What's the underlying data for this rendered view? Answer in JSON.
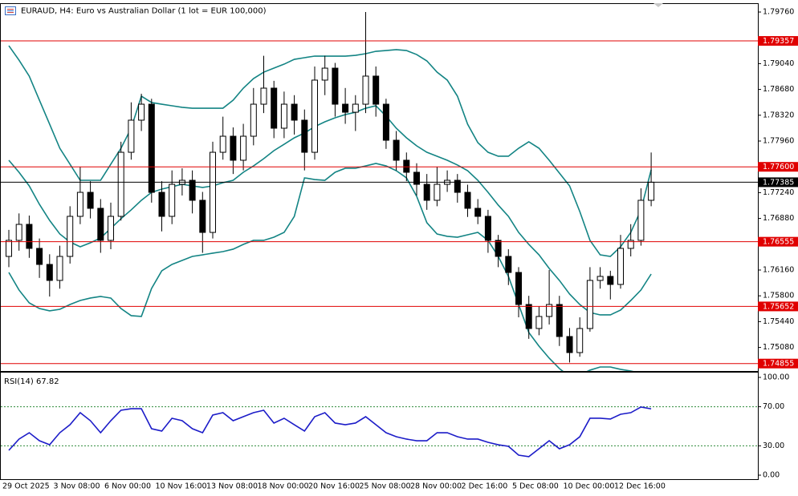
{
  "chart_data": [
    {
      "type": "candlestick",
      "title": "EURAUD, H4:  Euro vs Australian Dollar (1 lot = EUR 100,000)",
      "categories": [
        "29 Oct 2025",
        null,
        null,
        null,
        null,
        "3 Nov 08:00",
        null,
        null,
        null,
        null,
        "6 Nov 00:00",
        null,
        null,
        null,
        null,
        "10 Nov 16:00",
        null,
        null,
        null,
        null,
        "13 Nov 08:00",
        null,
        null,
        null,
        null,
        "18 Nov 00:00",
        null,
        null,
        null,
        null,
        "20 Nov 16:00",
        null,
        null,
        null,
        null,
        "25 Nov 08:00",
        null,
        null,
        null,
        null,
        "28 Nov 00:00",
        null,
        null,
        null,
        null,
        "2 Dec 16:00",
        null,
        null,
        null,
        null,
        "5 Dec 08:00",
        null,
        null,
        null,
        null,
        "10 Dec 00:00",
        null,
        null,
        null,
        null,
        "12 Dec 16:00",
        null,
        null,
        null
      ],
      "open": [
        1.7635,
        1.76574,
        1.76797,
        1.76462,
        1.76238,
        1.76015,
        1.7635,
        1.76909,
        1.77244,
        1.77021,
        1.76574,
        1.76909,
        1.77803,
        1.78251,
        1.78474,
        1.77244,
        1.76909,
        1.77356,
        1.77412,
        1.77133,
        1.76685,
        1.77803,
        1.78027,
        1.77692,
        1.78027,
        1.78474,
        1.78698,
        1.78139,
        1.78474,
        1.78251,
        1.77803,
        1.7881,
        1.78977,
        1.78474,
        1.78362,
        1.78474,
        1.78866,
        1.78474,
        1.77971,
        1.77692,
        1.77524,
        1.77356,
        1.77133,
        1.77356,
        1.77412,
        1.77244,
        1.77021,
        1.76909,
        1.76574,
        1.7635,
        1.76126,
        1.75679,
        1.75344,
        1.75512,
        1.75679,
        1.75232,
        1.75008,
        1.75344,
        1.76015,
        1.76071,
        1.75959,
        1.76462,
        1.76574,
        1.77133
      ],
      "high": [
        1.7672,
        1.7695,
        1.7692,
        1.766,
        1.7638,
        1.765,
        1.7705,
        1.776,
        1.774,
        1.7715,
        1.771,
        1.7795,
        1.785,
        1.7862,
        1.7855,
        1.774,
        1.7755,
        1.7758,
        1.7755,
        1.7725,
        1.7795,
        1.783,
        1.7815,
        1.782,
        1.787,
        1.7915,
        1.788,
        1.7865,
        1.786,
        1.784,
        1.79,
        1.7915,
        1.7905,
        1.787,
        1.786,
        1.7976,
        1.79,
        1.7855,
        1.781,
        1.778,
        1.7765,
        1.775,
        1.776,
        1.7755,
        1.775,
        1.7735,
        1.7715,
        1.77,
        1.7665,
        1.7645,
        1.762,
        1.758,
        1.7565,
        1.7616,
        1.758,
        1.7535,
        1.755,
        1.762,
        1.762,
        1.7615,
        1.7665,
        1.768,
        1.773,
        1.778
      ],
      "low": [
        1.762,
        1.7643,
        1.7633,
        1.7605,
        1.7579,
        1.759,
        1.7625,
        1.768,
        1.7688,
        1.764,
        1.7645,
        1.7685,
        1.777,
        1.781,
        1.771,
        1.767,
        1.768,
        1.772,
        1.7695,
        1.764,
        1.766,
        1.777,
        1.775,
        1.7755,
        1.779,
        1.7835,
        1.78,
        1.78,
        1.7805,
        1.7755,
        1.777,
        1.786,
        1.783,
        1.782,
        1.781,
        1.7835,
        1.783,
        1.7785,
        1.7755,
        1.774,
        1.772,
        1.77,
        1.7705,
        1.7725,
        1.771,
        1.769,
        1.768,
        1.764,
        1.762,
        1.7595,
        1.755,
        1.752,
        1.7525,
        1.754,
        1.751,
        1.7487,
        1.7495,
        1.753,
        1.759,
        1.7575,
        1.759,
        1.7635,
        1.765,
        1.7705
      ],
      "close": [
        1.76574,
        1.76797,
        1.76462,
        1.76238,
        1.76015,
        1.7635,
        1.76909,
        1.77244,
        1.77021,
        1.76574,
        1.76909,
        1.77803,
        1.78251,
        1.78474,
        1.77244,
        1.76909,
        1.77356,
        1.77412,
        1.77133,
        1.76685,
        1.77803,
        1.78027,
        1.77692,
        1.78027,
        1.78474,
        1.78698,
        1.78139,
        1.78474,
        1.78251,
        1.77803,
        1.7881,
        1.78977,
        1.78474,
        1.78362,
        1.78474,
        1.78866,
        1.78474,
        1.77971,
        1.77692,
        1.77524,
        1.77356,
        1.77133,
        1.77356,
        1.77412,
        1.77244,
        1.77021,
        1.76909,
        1.76574,
        1.7635,
        1.76126,
        1.75679,
        1.75344,
        1.75512,
        1.75679,
        1.75232,
        1.75008,
        1.75344,
        1.76015,
        1.76071,
        1.75959,
        1.76462,
        1.76574,
        1.77133,
        1.77385
      ],
      "color_up": "#ffffff",
      "color_down": "#000000",
      "outline": "#000000",
      "overlays": [
        {
          "color": "#138484",
          "values": [
            1.7929,
            1.79089,
            1.78866,
            1.7853,
            1.78195,
            1.77859,
            1.77636,
            1.77412,
            1.77412,
            1.77412,
            1.77636,
            1.77859,
            1.78139,
            1.78586,
            1.78497,
            1.78474,
            1.78452,
            1.7843,
            1.78418,
            1.78418,
            1.78418,
            1.78418,
            1.7853,
            1.78698,
            1.78832,
            1.78921,
            1.78977,
            1.79033,
            1.791,
            1.79123,
            1.79145,
            1.79145,
            1.79145,
            1.79145,
            1.79156,
            1.79179,
            1.79212,
            1.79223,
            1.79235,
            1.79223,
            1.79167,
            1.79078,
            1.78921,
            1.7881,
            1.78586,
            1.78195,
            1.77938,
            1.77803,
            1.77748,
            1.77748,
            1.77859,
            1.77949,
            1.77859,
            1.77692,
            1.77513,
            1.77334,
            1.76976,
            1.76574,
            1.76372,
            1.7635,
            1.76484,
            1.76685,
            1.76999,
            1.77558
          ]
        },
        {
          "color": "#138484",
          "values": [
            1.77692,
            1.77524,
            1.77334,
            1.77077,
            1.76853,
            1.76663,
            1.76551,
            1.76484,
            1.7654,
            1.76607,
            1.76741,
            1.76876,
            1.76999,
            1.77133,
            1.77244,
            1.77289,
            1.77323,
            1.77356,
            1.77334,
            1.77312,
            1.77334,
            1.77379,
            1.77412,
            1.77524,
            1.77613,
            1.77714,
            1.77826,
            1.77915,
            1.78005,
            1.78072,
            1.78161,
            1.78228,
            1.78284,
            1.78329,
            1.78362,
            1.78418,
            1.78452,
            1.78307,
            1.78139,
            1.78005,
            1.77893,
            1.77803,
            1.77748,
            1.77692,
            1.77625,
            1.77546,
            1.77412,
            1.77244,
            1.77066,
            1.76909,
            1.76685,
            1.76518,
            1.76372,
            1.76182,
            1.76015,
            1.75825,
            1.75679,
            1.75567,
            1.75534,
            1.75534,
            1.75601,
            1.75735,
            1.75881,
            1.76104
          ]
        },
        {
          "color": "#138484",
          "values": [
            1.76126,
            1.75881,
            1.75702,
            1.75623,
            1.7559,
            1.75612,
            1.75679,
            1.75735,
            1.75769,
            1.75791,
            1.75769,
            1.75623,
            1.75523,
            1.75512,
            1.75903,
            1.76149,
            1.76238,
            1.76294,
            1.7635,
            1.76372,
            1.76395,
            1.76417,
            1.76451,
            1.76518,
            1.76574,
            1.76574,
            1.76618,
            1.76685,
            1.76909,
            1.77446,
            1.77423,
            1.77412,
            1.77524,
            1.7758,
            1.7758,
            1.77613,
            1.77647,
            1.77613,
            1.77546,
            1.77446,
            1.77189,
            1.7682,
            1.76663,
            1.7663,
            1.76618,
            1.76652,
            1.76685,
            1.76574,
            1.7635,
            1.76071,
            1.75679,
            1.75288,
            1.75098,
            1.7493,
            1.74785,
            1.74673,
            1.74695,
            1.74763,
            1.74807,
            1.74807,
            1.74774,
            1.74751,
            1.74718,
            1.74695
          ]
        }
      ],
      "ylim": [
        1.74751,
        1.79872
      ],
      "yticks": [
        {
          "value": 1.7976,
          "label": "1.79760"
        },
        {
          "value": 1.7904,
          "label": "1.79040"
        },
        {
          "value": 1.7868,
          "label": "1.78680"
        },
        {
          "value": 1.7832,
          "label": "1.78320"
        },
        {
          "value": 1.7796,
          "label": "1.77960"
        },
        {
          "value": 1.7724,
          "label": "1.77240"
        },
        {
          "value": 1.7688,
          "label": "1.76880"
        },
        {
          "value": 1.7616,
          "label": "1.76160"
        },
        {
          "value": 1.758,
          "label": "1.75800"
        },
        {
          "value": 1.7544,
          "label": "1.75440"
        },
        {
          "value": 1.7508,
          "label": "1.75080"
        }
      ],
      "hlines": [
        {
          "value": 1.79357,
          "color": "#e00000"
        },
        {
          "value": {
            "value": 1.776,
            "label": "1.77600"
          },
          "color": "#e00000"
        },
        {
          "value": 1.76555,
          "color": "#e00000"
        },
        {
          "value": 1.75652,
          "color": "#e00000"
        },
        {
          "value": 1.74855,
          "color": "#e00000"
        },
        {
          "value": 1.77385,
          "color": "#000000"
        }
      ]
    },
    {
      "type": "line",
      "title": "RSI(14) 67.82",
      "color": "#1c1cc8",
      "level_color": "#2e8b3a",
      "values": [
        25.4,
        36.9,
        43.4,
        35.2,
        31.1,
        43.4,
        51.6,
        63.9,
        55.7,
        43.4,
        55.7,
        66.4,
        68.0,
        68.0,
        47.5,
        45.1,
        58.2,
        55.7,
        47.5,
        43.4,
        61.5,
        63.9,
        55.7,
        59.8,
        63.9,
        66.4,
        53.3,
        58.2,
        51.6,
        45.1,
        59.8,
        63.9,
        53.3,
        51.6,
        53.3,
        59.8,
        51.6,
        43.4,
        39.3,
        36.9,
        35.2,
        35.2,
        43.4,
        43.4,
        39.3,
        36.9,
        36.9,
        33.6,
        31.1,
        29.5,
        20.5,
        18.9,
        27.0,
        35.2,
        27.0,
        31.1,
        39.3,
        58.2,
        58.2,
        57.4,
        62.3,
        63.9,
        69.7,
        67.82
      ],
      "ylim": [
        -4.1,
        104.9
      ],
      "yticks": [
        {
          "value": 100,
          "label": "100.00"
        },
        {
          "value": 70,
          "label": "70.00",
          "level": true
        },
        {
          "value": 30,
          "label": "30.00",
          "level": true
        },
        {
          "value": 0,
          "label": "0.00"
        }
      ]
    }
  ]
}
